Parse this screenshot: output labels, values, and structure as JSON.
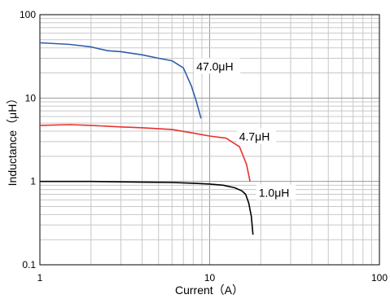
{
  "chart_data": {
    "type": "line",
    "title": "",
    "xlabel": "Current（A）",
    "ylabel": "Inductance（μH）",
    "x_scale": "log",
    "y_scale": "log",
    "xlim": [
      1,
      100
    ],
    "ylim": [
      0.1,
      100
    ],
    "x_ticks": [
      "1",
      "10",
      "100"
    ],
    "y_ticks": [
      "0.1",
      "1",
      "10",
      "100"
    ],
    "grid": true,
    "series": [
      {
        "name": "47.0μH",
        "color": "#2f5eaa",
        "x": [
          1,
          1.5,
          2,
          2.5,
          3,
          4,
          5,
          6,
          7,
          7.8,
          8.3,
          8.9
        ],
        "y": [
          46,
          44,
          41,
          37,
          36,
          33,
          30,
          28,
          23,
          14,
          9.5,
          5.7
        ]
      },
      {
        "name": "4.7μH",
        "color": "#e8322d",
        "x": [
          1,
          1.5,
          2,
          3,
          4,
          6,
          8,
          10,
          12.5,
          15,
          16.5,
          17.3
        ],
        "y": [
          4.7,
          4.8,
          4.7,
          4.5,
          4.4,
          4.2,
          3.8,
          3.5,
          3.3,
          2.6,
          1.6,
          1.0
        ]
      },
      {
        "name": "1.0μH",
        "color": "#000000",
        "x": [
          1,
          2,
          4,
          6,
          8,
          10,
          12,
          14,
          15.5,
          16.3,
          17,
          17.6,
          18
        ],
        "y": [
          1.0,
          1.0,
          0.98,
          0.97,
          0.95,
          0.93,
          0.9,
          0.84,
          0.77,
          0.7,
          0.55,
          0.38,
          0.23
        ]
      }
    ]
  }
}
